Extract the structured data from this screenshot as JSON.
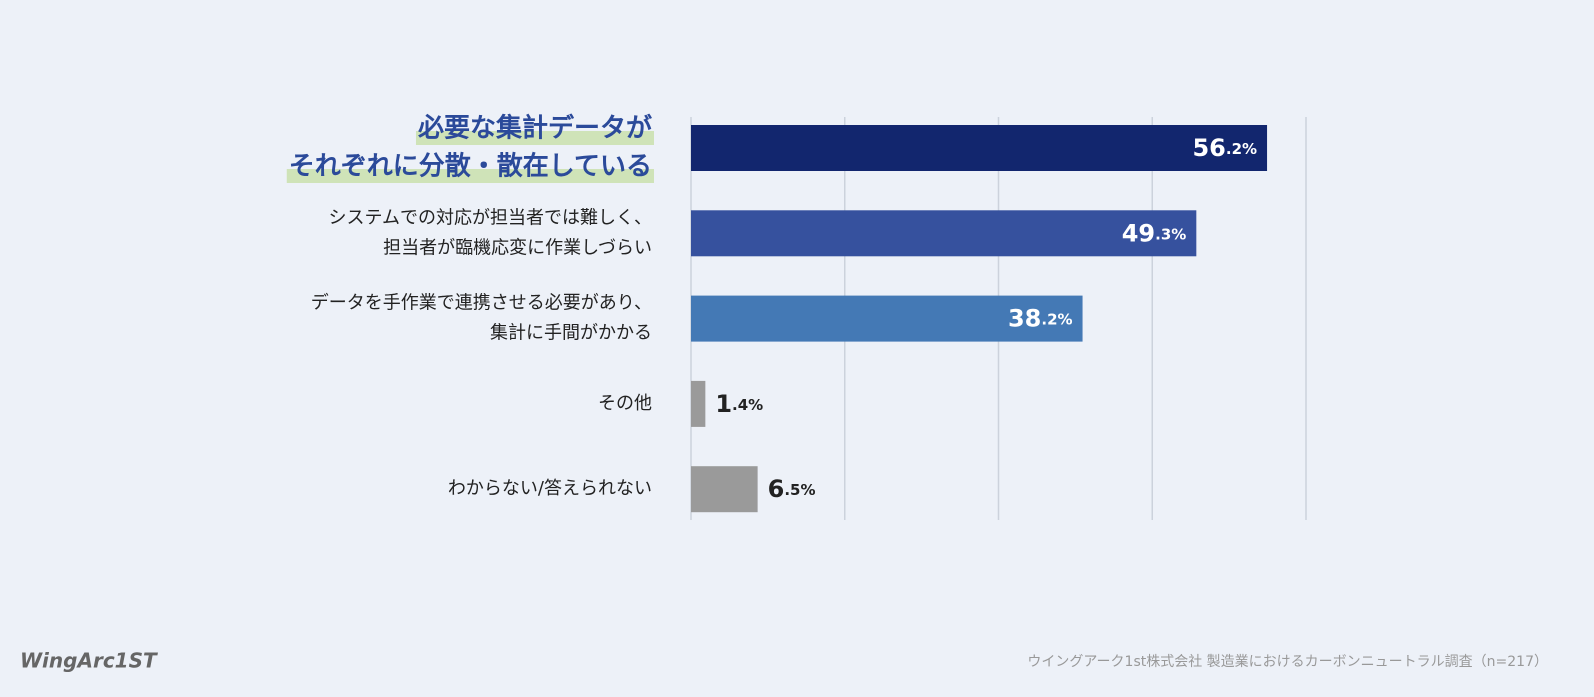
{
  "chart_data": {
    "type": "bar",
    "orientation": "horizontal",
    "categories": [
      [
        "必要な集計データが",
        "それぞれに分散・散在している"
      ],
      [
        "システムでの対応が担当者では難しく、",
        "担当者が臨機応変に作業しづらい"
      ],
      [
        "データを手作業で連携させる必要があり、",
        "集計に手間がかかる"
      ],
      [
        "その他"
      ],
      [
        "わからない/答えられない"
      ]
    ],
    "values": [
      56.2,
      49.3,
      38.2,
      1.4,
      6.5
    ],
    "value_labels": [
      "56.2%",
      "49.3%",
      "38.2%",
      "1.4%",
      "6.5%"
    ],
    "colors": [
      "#12266e",
      "#36519e",
      "#4479b5",
      "#9a9a9a",
      "#9a9a9a"
    ],
    "highlight": 0,
    "xlim": [
      0,
      60
    ],
    "xticks": [
      0,
      15,
      30,
      45,
      60
    ],
    "grid": true
  },
  "footer": {
    "logo": "WingArc1ST",
    "source": "ウイングアーク1st株式会社  製造業におけるカーボンニュートラル調査（n=217）"
  }
}
